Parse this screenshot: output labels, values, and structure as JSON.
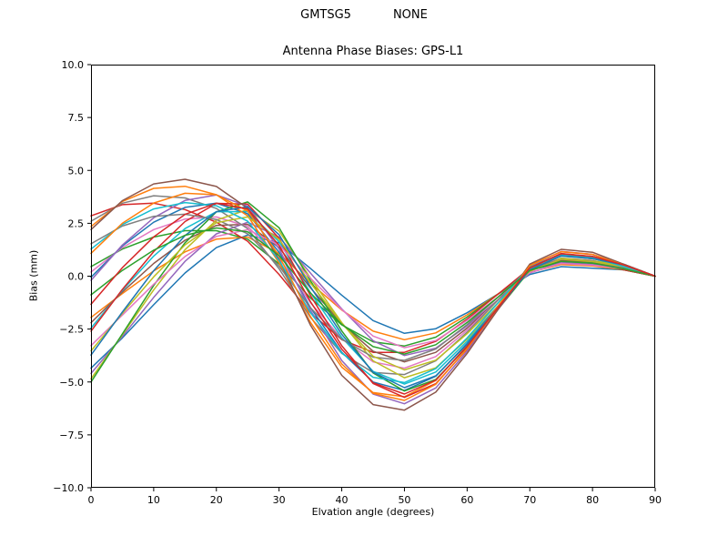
{
  "header": {
    "program": "GMTSG5",
    "mode": "NONE"
  },
  "chart_data": {
    "type": "line",
    "title": "Antenna Phase Biases: GPS-L1",
    "xlabel": "Elvation angle (degrees)",
    "ylabel": "Bias (mm)",
    "xlim": [
      0,
      90
    ],
    "ylim": [
      -10,
      10
    ],
    "xticks": [
      0,
      10,
      20,
      30,
      40,
      50,
      60,
      70,
      80,
      90
    ],
    "xtick_labels": [
      "0",
      "10",
      "20",
      "30",
      "40",
      "50",
      "60",
      "70",
      "80",
      "90"
    ],
    "yticks": [
      -10,
      -7.5,
      -5,
      -2.5,
      0,
      2.5,
      5,
      7.5,
      10
    ],
    "ytick_labels": [
      "−10.0",
      "−7.5",
      "−5.0",
      "−2.5",
      "0.0",
      "2.5",
      "5.0",
      "7.5",
      "10.0"
    ],
    "grid": false,
    "legend": "none",
    "line_width": 1.5,
    "colors": [
      "#1f77b4",
      "#ff7f0e",
      "#2ca02c",
      "#d62728",
      "#9467bd",
      "#8c564b",
      "#e377c2",
      "#7f7f7f",
      "#bcbd22",
      "#17becf"
    ],
    "x": [
      0,
      5,
      10,
      15,
      20,
      25,
      30,
      35,
      40,
      45,
      50,
      55,
      60,
      65,
      70,
      75,
      80,
      85,
      90
    ],
    "series": [
      [
        -4.35,
        -2.92,
        -1.35,
        0.15,
        1.35,
        1.95,
        1.58,
        0.37,
        -0.9,
        -2.1,
        -2.7,
        -2.48,
        -1.73,
        -0.83,
        0.08,
        0.45,
        0.38,
        0.3,
        0
      ],
      [
        -1.95,
        -0.82,
        0.25,
        1.15,
        1.75,
        1.85,
        1.08,
        -0.33,
        -1.6,
        -2.6,
        -3.0,
        -2.68,
        -1.83,
        -0.83,
        0.18,
        0.55,
        0.48,
        0.3,
        0
      ],
      [
        0.45,
        1.28,
        1.85,
        2.15,
        2.15,
        1.75,
        0.58,
        -1.03,
        -2.3,
        -3.1,
        -3.3,
        -2.88,
        -1.93,
        -0.83,
        0.28,
        0.65,
        0.58,
        0.3,
        0
      ],
      [
        2.85,
        3.38,
        3.45,
        3.15,
        2.55,
        1.65,
        0.08,
        -1.73,
        -3.0,
        -3.6,
        -3.6,
        -3.08,
        -2.03,
        -0.83,
        0.38,
        0.75,
        0.68,
        0.3,
        0
      ],
      [
        -4.6,
        -2.85,
        -1.0,
        0.7,
        2.0,
        2.55,
        1.85,
        0.15,
        -1.55,
        -3.05,
        -3.75,
        -3.4,
        -2.35,
        -1.1,
        0.15,
        0.65,
        0.55,
        0.4,
        0
      ],
      [
        -2.2,
        -0.75,
        0.6,
        1.7,
        2.4,
        2.45,
        1.35,
        -0.55,
        -2.25,
        -3.55,
        -4.05,
        -3.6,
        -2.45,
        -1.1,
        0.25,
        0.75,
        0.65,
        0.4,
        0
      ],
      [
        0.2,
        1.35,
        2.2,
        2.7,
        2.8,
        2.35,
        0.85,
        -1.25,
        -2.95,
        -4.05,
        -4.35,
        -3.8,
        -2.55,
        -1.1,
        0.35,
        0.85,
        0.75,
        0.4,
        0
      ],
      [
        2.6,
        3.45,
        3.8,
        3.7,
        3.2,
        2.25,
        0.35,
        -1.95,
        -3.65,
        -4.55,
        -4.65,
        -4.0,
        -2.65,
        -1.1,
        0.45,
        0.95,
        0.85,
        0.4,
        0
      ],
      [
        -4.85,
        -2.77,
        -0.65,
        1.25,
        2.65,
        3.15,
        2.13,
        -0.08,
        -2.2,
        -4.0,
        -4.8,
        -4.33,
        -2.98,
        -1.38,
        0.23,
        0.85,
        0.73,
        0.5,
        0
      ],
      [
        -2.45,
        -0.67,
        0.95,
        2.25,
        3.05,
        3.05,
        1.63,
        -0.78,
        -2.9,
        -4.5,
        -5.1,
        -4.53,
        -3.08,
        -1.38,
        0.33,
        0.95,
        0.83,
        0.5,
        0
      ],
      [
        -0.05,
        1.43,
        2.55,
        3.25,
        3.45,
        2.95,
        1.13,
        -1.48,
        -3.6,
        -5.0,
        -5.4,
        -4.73,
        -3.18,
        -1.38,
        0.43,
        1.05,
        0.93,
        0.5,
        0
      ],
      [
        2.35,
        3.53,
        4.15,
        4.25,
        3.85,
        2.85,
        0.63,
        -2.18,
        -4.3,
        -5.5,
        -5.7,
        -4.93,
        -3.28,
        -1.38,
        0.53,
        1.15,
        1.03,
        0.5,
        0
      ],
      [
        -5.0,
        -2.73,
        -0.44,
        1.58,
        3.04,
        3.51,
        2.29,
        -0.21,
        -2.59,
        -4.57,
        -5.43,
        -4.88,
        -3.35,
        -1.54,
        0.27,
        0.97,
        0.83,
        0.56,
        0
      ],
      [
        -2.6,
        -0.63,
        1.16,
        2.58,
        3.44,
        3.41,
        1.79,
        -0.91,
        -3.29,
        -5.07,
        -5.73,
        -5.08,
        -3.45,
        -1.54,
        0.37,
        1.07,
        0.93,
        0.56,
        0
      ],
      [
        -0.2,
        1.47,
        2.76,
        3.58,
        3.84,
        3.31,
        1.29,
        -1.61,
        -3.99,
        -5.57,
        -6.03,
        -5.28,
        -3.55,
        -1.54,
        0.47,
        1.17,
        1.03,
        0.56,
        0
      ],
      [
        2.2,
        3.57,
        4.36,
        4.58,
        4.24,
        3.21,
        0.79,
        -2.31,
        -4.69,
        -6.07,
        -6.33,
        -5.48,
        -3.65,
        -1.54,
        0.57,
        1.27,
        1.13,
        0.56,
        0
      ],
      [
        -3.28,
        -1.84,
        -0.38,
        0.93,
        1.88,
        2.2,
        1.47,
        -0.09,
        -1.58,
        -2.83,
        -3.38,
        -3.04,
        -2.09,
        -0.97,
        0.17,
        0.6,
        0.52,
        0.35,
        0
      ],
      [
        1.53,
        2.37,
        2.83,
        2.93,
        2.68,
        2.0,
        0.47,
        -1.49,
        -2.98,
        -3.83,
        -3.98,
        -3.44,
        -2.29,
        -0.97,
        0.37,
        0.8,
        0.72,
        0.35,
        0
      ],
      [
        -3.53,
        -1.76,
        -0.03,
        1.48,
        2.53,
        2.8,
        1.74,
        -0.32,
        -2.23,
        -3.78,
        -4.43,
        -3.97,
        -2.72,
        -1.24,
        0.24,
        0.8,
        0.69,
        0.45,
        0
      ],
      [
        1.28,
        2.44,
        3.18,
        3.48,
        3.33,
        2.6,
        0.74,
        -1.72,
        -3.63,
        -4.78,
        -5.03,
        -4.37,
        -2.92,
        -1.24,
        0.44,
        1.0,
        0.89,
        0.45,
        0
      ],
      [
        -3.73,
        -1.7,
        0.26,
        1.92,
        3.05,
        3.28,
        1.96,
        -0.5,
        -2.75,
        -4.54,
        -5.27,
        -4.71,
        -3.22,
        -1.46,
        0.3,
        0.96,
        0.83,
        0.53,
        0
      ],
      [
        1.08,
        2.5,
        3.46,
        3.92,
        3.85,
        3.08,
        0.96,
        -1.9,
        -4.15,
        -5.54,
        -5.87,
        -5.11,
        -3.42,
        -1.46,
        0.5,
        1.16,
        1.03,
        0.53,
        0
      ],
      [
        -0.88,
        0.27,
        1.23,
        1.93,
        2.28,
        2.1,
        0.97,
        -0.79,
        -2.28,
        -3.33,
        -3.68,
        -3.24,
        -2.19,
        -0.97,
        0.27,
        0.7,
        0.62,
        0.35,
        0
      ],
      [
        -1.33,
        0.4,
        1.86,
        2.92,
        3.45,
        3.18,
        1.46,
        -1.2,
        -3.45,
        -5.04,
        -5.57,
        -4.91,
        -3.32,
        -1.46,
        0.4,
        1.06,
        0.93,
        0.53,
        0
      ]
    ]
  }
}
